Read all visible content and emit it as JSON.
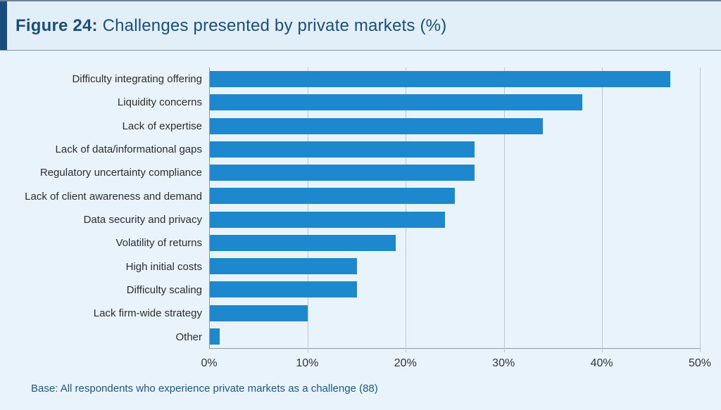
{
  "header": {
    "figure_label": "Figure 24:",
    "title_rest": " Challenges presented by private markets (%)"
  },
  "footer": {
    "base_note": "Base: All respondents who experience private markets as a challenge (88)"
  },
  "colors": {
    "bar": "#1e88ce",
    "accent_navy": "#1a4e7d",
    "background": "#e9f3fb",
    "gridline": "#bcc8d1",
    "axis_line": "#8d9aa5"
  },
  "chart_data": {
    "type": "bar",
    "orientation": "horizontal",
    "title": "Figure 24: Challenges presented by private markets (%)",
    "categories": [
      "Difficulty integrating offering",
      "Liquidity concerns",
      "Lack of expertise",
      "Lack of data/informational gaps",
      "Regulatory uncertainty compliance",
      "Lack of client awareness and demand",
      "Data security and privacy",
      "Volatility of returns",
      "High initial costs",
      "Difficulty scaling",
      "Lack firm-wide strategy",
      "Other"
    ],
    "values": [
      47,
      38,
      34,
      27,
      27,
      25,
      24,
      19,
      15,
      15,
      10,
      1
    ],
    "xlabel": "",
    "ylabel": "",
    "xlim": [
      0,
      50
    ],
    "x_ticks": [
      "0%",
      "10%",
      "20%",
      "30%",
      "40%",
      "50%"
    ],
    "x_tick_values": [
      0,
      10,
      20,
      30,
      40,
      50
    ],
    "grid": "vertical",
    "legend": "none",
    "unit": "%"
  }
}
